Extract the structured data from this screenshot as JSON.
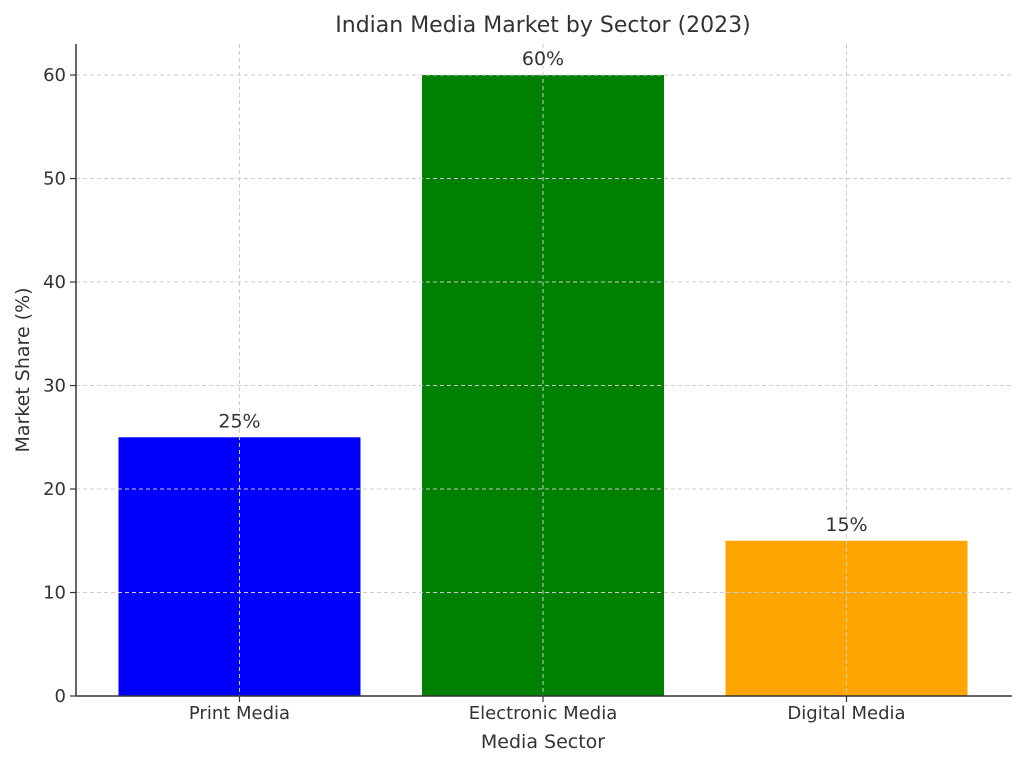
{
  "chart_data": {
    "type": "bar",
    "title": "Indian Media Market by Sector (2023)",
    "xlabel": "Media Sector",
    "ylabel": "Market Share (%)",
    "categories": [
      "Print Media",
      "Electronic Media",
      "Digital Media"
    ],
    "values": [
      25,
      60,
      15
    ],
    "data_labels": [
      "25%",
      "60%",
      "15%"
    ],
    "colors": [
      "#0000ff",
      "#008000",
      "#ffa500"
    ],
    "ylim": [
      0,
      63
    ],
    "yticks": [
      0,
      10,
      20,
      30,
      40,
      50,
      60
    ],
    "grid": true,
    "legend": "none"
  }
}
